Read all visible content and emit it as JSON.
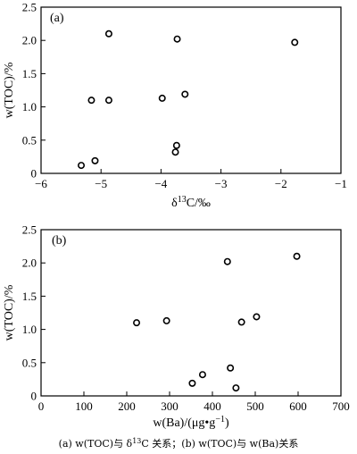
{
  "chart_data": [
    {
      "type": "scatter",
      "panel": "(a)",
      "xlabel": "δ13C/‰",
      "ylabel": "w(TOC)/%",
      "xlim": [
        -6,
        -1
      ],
      "ylim": [
        0,
        2.5
      ],
      "xticks": [
        "−6",
        "−5",
        "−4",
        "−3",
        "−2",
        "−1"
      ],
      "yticks": [
        "0",
        "0.5",
        "1.0",
        "1.5",
        "2.0",
        "2.5"
      ],
      "points": [
        {
          "x": -5.33,
          "y": 0.12
        },
        {
          "x": -5.1,
          "y": 0.19
        },
        {
          "x": -5.16,
          "y": 1.1
        },
        {
          "x": -4.87,
          "y": 1.1
        },
        {
          "x": -4.87,
          "y": 2.1
        },
        {
          "x": -3.98,
          "y": 1.13
        },
        {
          "x": -3.73,
          "y": 2.02
        },
        {
          "x": -3.74,
          "y": 0.42
        },
        {
          "x": -3.76,
          "y": 0.32
        },
        {
          "x": -3.6,
          "y": 1.19
        },
        {
          "x": -1.77,
          "y": 1.97
        }
      ]
    },
    {
      "type": "scatter",
      "panel": "(b)",
      "xlabel": "w(Ba)/(μg•g−1)",
      "ylabel": "w(TOC)/%",
      "xlim": [
        0,
        700
      ],
      "ylim": [
        0,
        2.5
      ],
      "xticks": [
        "0",
        "100",
        "200",
        "300",
        "400",
        "500",
        "600",
        "700"
      ],
      "yticks": [
        "0",
        "0.5",
        "1.0",
        "1.5",
        "2.0",
        "2.5"
      ],
      "points": [
        {
          "x": 223,
          "y": 1.1
        },
        {
          "x": 293,
          "y": 1.13
        },
        {
          "x": 353,
          "y": 0.19
        },
        {
          "x": 377,
          "y": 0.32
        },
        {
          "x": 435,
          "y": 2.02
        },
        {
          "x": 442,
          "y": 0.42
        },
        {
          "x": 455,
          "y": 0.12
        },
        {
          "x": 468,
          "y": 1.11
        },
        {
          "x": 503,
          "y": 1.19
        },
        {
          "x": 597,
          "y": 2.1
        }
      ]
    }
  ],
  "caption": "(a) w(TOC)与 δ13C 关系；(b) w(TOC)与 w(Ba)关系"
}
